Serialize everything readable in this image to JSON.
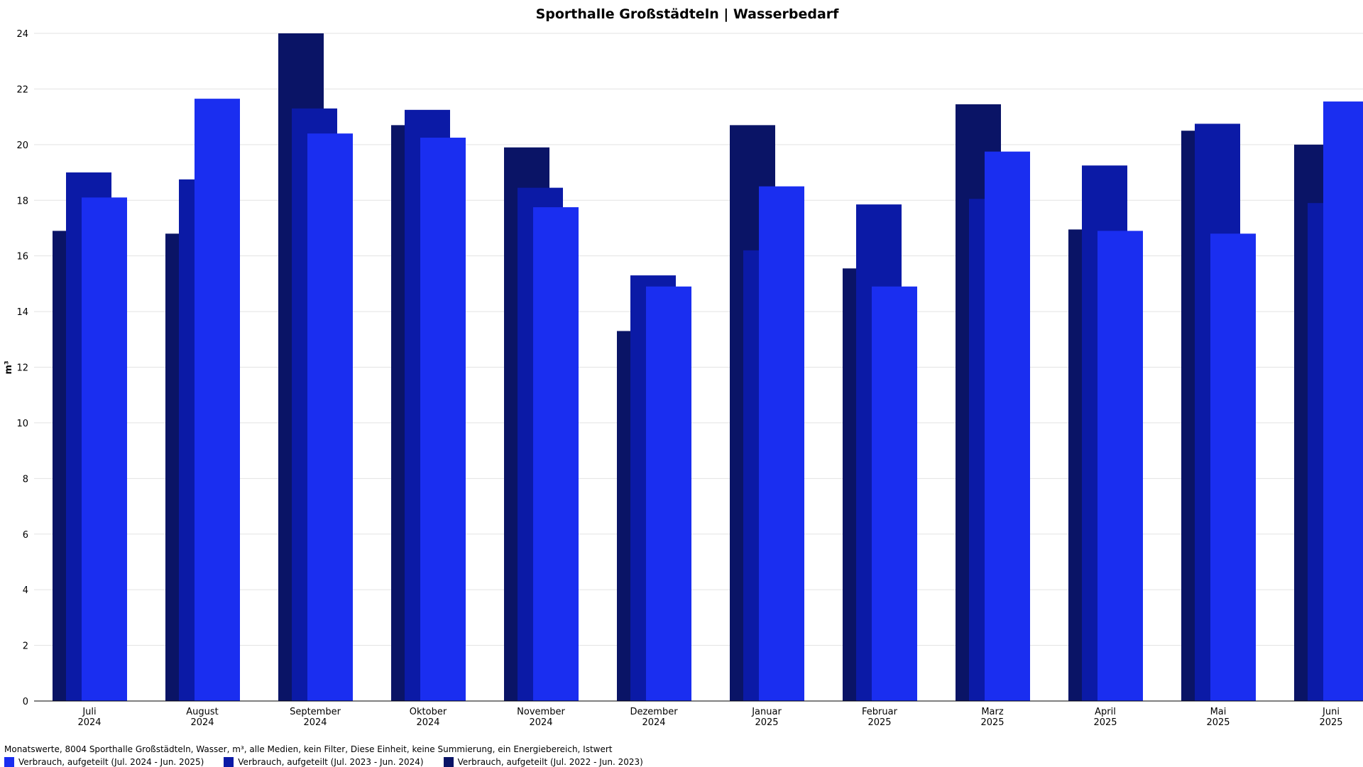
{
  "chart_data": {
    "type": "bar",
    "title": "Sporthalle Großstädteln | Wasserbedarf",
    "ylabel": "m³",
    "ylim": [
      0,
      24
    ],
    "yticks": [
      0,
      2,
      4,
      6,
      8,
      10,
      12,
      14,
      16,
      18,
      20,
      22,
      24
    ],
    "categories": [
      [
        "Juli",
        "2024"
      ],
      [
        "August",
        "2024"
      ],
      [
        "September",
        "2024"
      ],
      [
        "Oktober",
        "2024"
      ],
      [
        "November",
        "2024"
      ],
      [
        "Dezember",
        "2024"
      ],
      [
        "Januar",
        "2025"
      ],
      [
        "Februar",
        "2025"
      ],
      [
        "Marz",
        "2025"
      ],
      [
        "April",
        "2025"
      ],
      [
        "Mai",
        "2025"
      ],
      [
        "Juni",
        "2025"
      ]
    ],
    "series": [
      {
        "name": "Verbrauch, aufgeteilt (Jul. 2022 - Jun. 2023)",
        "color": "#0a1466",
        "values": [
          16.9,
          16.8,
          24.0,
          20.7,
          19.9,
          13.3,
          20.7,
          15.55,
          21.45,
          16.95,
          20.5,
          20.0
        ]
      },
      {
        "name": "Verbrauch, aufgeteilt (Jul. 2023 - Jun. 2024)",
        "color": "#0b1aa6",
        "values": [
          19.0,
          18.75,
          21.3,
          21.25,
          18.45,
          15.3,
          16.2,
          17.85,
          18.05,
          19.25,
          20.75,
          17.9
        ]
      },
      {
        "name": "Verbrauch, aufgeteilt (Jul. 2024 - Jun. 2025)",
        "color": "#1a2ef0",
        "values": [
          18.1,
          21.65,
          20.4,
          20.25,
          17.75,
          14.9,
          18.5,
          14.9,
          19.75,
          16.9,
          16.8,
          21.55
        ]
      }
    ],
    "grid": true,
    "legend": "bottom-left"
  },
  "footnote": "Monatswerte, 8004 Sporthalle Großstädteln, Wasser, m³, alle Medien, kein Filter, Diese Einheit, keine Summierung, ein Energiebereich, Istwert",
  "legend_order": [
    2,
    1,
    0
  ]
}
